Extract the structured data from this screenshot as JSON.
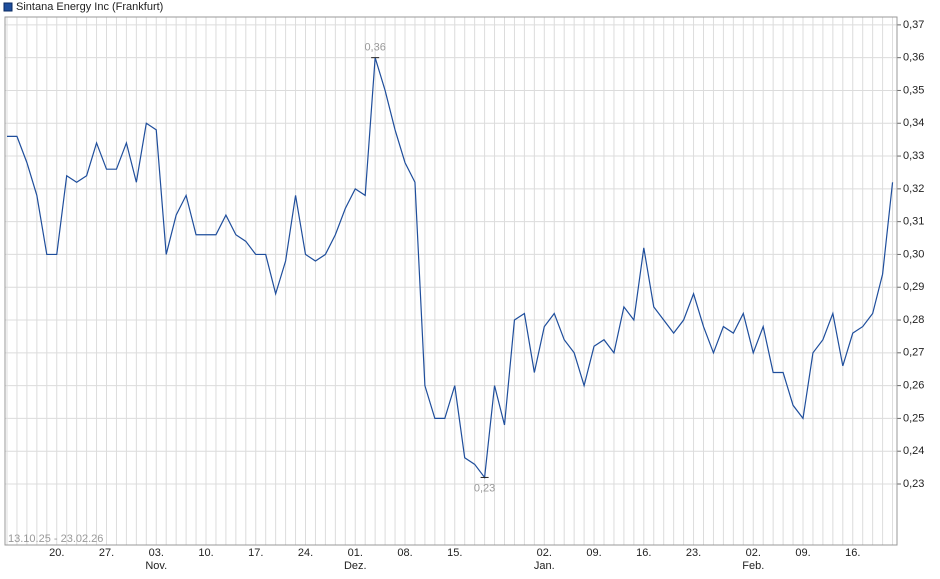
{
  "chart_data": {
    "type": "line",
    "title": "Sintana Energy Inc (Frankfurt)",
    "date_range": "13.10.25 - 23.02.26",
    "x_labels": [
      null,
      null,
      null,
      null,
      null,
      "20.",
      null,
      null,
      null,
      null,
      "27.",
      null,
      null,
      null,
      null,
      "03.",
      null,
      null,
      null,
      null,
      "10.",
      null,
      null,
      null,
      null,
      "17.",
      null,
      null,
      null,
      null,
      "24.",
      null,
      null,
      null,
      null,
      "01.",
      null,
      null,
      null,
      null,
      "08.",
      null,
      null,
      null,
      null,
      "15.",
      null,
      null,
      null,
      null,
      null,
      null,
      null,
      null,
      "02.",
      null,
      null,
      null,
      null,
      "09.",
      null,
      null,
      null,
      null,
      "16.",
      null,
      null,
      null,
      null,
      "23.",
      null,
      null,
      null,
      null,
      null,
      "02.",
      null,
      null,
      null,
      null,
      "09.",
      null,
      null,
      null,
      null,
      "16.",
      null,
      null,
      null,
      null
    ],
    "month_labels": [
      null,
      null,
      null,
      null,
      null,
      null,
      null,
      null,
      null,
      null,
      null,
      null,
      null,
      null,
      null,
      "Nov.",
      null,
      null,
      null,
      null,
      null,
      null,
      null,
      null,
      null,
      null,
      null,
      null,
      null,
      null,
      null,
      null,
      null,
      null,
      null,
      "Dez.",
      null,
      null,
      null,
      null,
      null,
      null,
      null,
      null,
      null,
      null,
      null,
      null,
      null,
      null,
      null,
      null,
      null,
      null,
      "Jan.",
      null,
      null,
      null,
      null,
      null,
      null,
      null,
      null,
      null,
      null,
      null,
      null,
      null,
      null,
      null,
      null,
      null,
      null,
      null,
      null,
      "Feb.",
      null,
      null,
      null,
      null,
      null,
      null,
      null,
      null,
      null,
      null,
      null,
      null,
      null,
      null
    ],
    "series": [
      {
        "name": "Sintana Energy Inc (Frankfurt)",
        "color": "#1f4e9c",
        "values": [
          0.336,
          0.336,
          0.328,
          0.318,
          0.3,
          0.3,
          0.324,
          0.322,
          0.324,
          0.334,
          0.326,
          0.326,
          0.334,
          0.322,
          0.34,
          0.338,
          0.3,
          0.312,
          0.318,
          0.306,
          0.306,
          0.306,
          0.312,
          0.306,
          0.304,
          0.3,
          0.3,
          0.288,
          0.298,
          0.318,
          0.3,
          0.298,
          0.3,
          0.306,
          0.314,
          0.32,
          0.318,
          0.36,
          0.35,
          0.338,
          0.328,
          0.322,
          0.26,
          0.25,
          0.25,
          0.26,
          0.238,
          0.236,
          0.232,
          0.26,
          0.248,
          0.28,
          0.282,
          0.264,
          0.278,
          0.282,
          0.274,
          0.27,
          0.26,
          0.272,
          0.274,
          0.27,
          0.284,
          0.28,
          0.302,
          0.284,
          0.28,
          0.276,
          0.28,
          0.288,
          0.278,
          0.27,
          0.278,
          0.276,
          0.282,
          0.27,
          0.278,
          0.264,
          0.264,
          0.254,
          0.25,
          0.27,
          0.274,
          0.282,
          0.266,
          0.276,
          0.278,
          0.282,
          0.294,
          0.322
        ]
      }
    ],
    "annotations": [
      {
        "index": 37,
        "label": "0,36"
      },
      {
        "index": 48,
        "label": "0,23"
      }
    ],
    "ylim": [
      0.2114,
      0.3724
    ],
    "yticks": [
      {
        "value": 0.23,
        "label": "0,23"
      },
      {
        "value": 0.24,
        "label": "0,24"
      },
      {
        "value": 0.25,
        "label": "0,25"
      },
      {
        "value": 0.26,
        "label": "0,26"
      },
      {
        "value": 0.27,
        "label": "0,27"
      },
      {
        "value": 0.28,
        "label": "0,28"
      },
      {
        "value": 0.29,
        "label": "0,29"
      },
      {
        "value": 0.3,
        "label": "0,30"
      },
      {
        "value": 0.31,
        "label": "0,31"
      },
      {
        "value": 0.32,
        "label": "0,32"
      },
      {
        "value": 0.33,
        "label": "0,33"
      },
      {
        "value": 0.34,
        "label": "0,34"
      },
      {
        "value": 0.35,
        "label": "0,35"
      },
      {
        "value": 0.36,
        "label": "0,36"
      },
      {
        "value": 0.37,
        "label": "0,37"
      }
    ],
    "grid": true
  }
}
